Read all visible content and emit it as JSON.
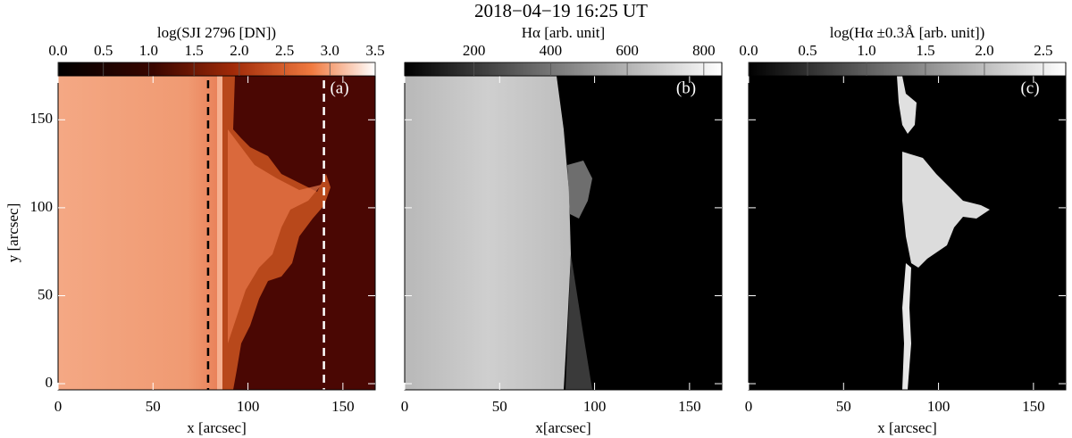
{
  "title": "2018−04−19 16:25 UT",
  "chart_data": [
    {
      "type": "image",
      "panel_label": "(a)",
      "colormap": "red-temperature",
      "colorbar": {
        "label": "log(SJI 2796 [DN])",
        "lim": [
          0,
          3.5
        ],
        "ticks": [
          {
            "value": 0,
            "label": "0.0"
          },
          {
            "value": 0.5,
            "label": "0.5"
          },
          {
            "value": 1,
            "label": "1.0"
          },
          {
            "value": 1.5,
            "label": "1.5"
          },
          {
            "value": 2,
            "label": "2.0"
          },
          {
            "value": 2.5,
            "label": "2.5"
          },
          {
            "value": 3,
            "label": "3.0"
          },
          {
            "value": 3.5,
            "label": "3.5"
          }
        ]
      },
      "xlabel": "x [arcsec]",
      "ylabel": "y [arcsec]",
      "show_ytick_labels": true,
      "xlim": [
        0,
        167
      ],
      "ylim": [
        -3.5,
        175
      ],
      "xticks": [
        0,
        50,
        100,
        150
      ],
      "yticks": [
        0,
        50,
        100,
        150
      ],
      "vlines": [
        {
          "value": 79,
          "color": "#000000"
        },
        {
          "value": 140,
          "color": "#ffffff"
        }
      ]
    },
    {
      "type": "image",
      "panel_label": "(b)",
      "colormap": "gray",
      "colorbar": {
        "label": "Hα [arb. unit]",
        "lim": [
          19,
          847
        ],
        "ticks": [
          200,
          400,
          600,
          800
        ]
      },
      "xlabel": "x[arcsec]",
      "show_ytick_labels": false,
      "xlim": [
        0,
        167
      ],
      "ylim": [
        -3.5,
        175
      ],
      "xticks": [
        0,
        50,
        100,
        150
      ],
      "yticks": [
        0,
        50,
        100,
        150
      ]
    },
    {
      "type": "image",
      "panel_label": "(c)",
      "colormap": "gray",
      "colorbar": {
        "label": "log(Hα ±0.3Å [arb. unit])",
        "lim": [
          0,
          2.69
        ],
        "ticks": [
          {
            "value": 0,
            "label": "0.0"
          },
          {
            "value": 0.5,
            "label": "0.5"
          },
          {
            "value": 1,
            "label": "1.0"
          },
          {
            "value": 1.5,
            "label": "1.5"
          },
          {
            "value": 2,
            "label": "2.0"
          },
          {
            "value": 2.5,
            "label": "2.5"
          }
        ]
      },
      "xlabel": "x [arcsec]",
      "show_ytick_labels": false,
      "xlim": [
        0,
        167
      ],
      "ylim": [
        -3.5,
        175
      ],
      "xticks": [
        0,
        50,
        100,
        150
      ],
      "yticks": [
        0,
        50,
        100,
        150
      ]
    }
  ]
}
